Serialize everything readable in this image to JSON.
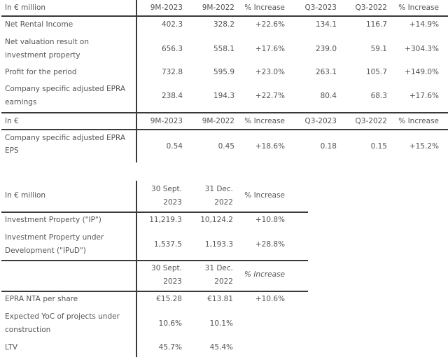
{
  "table1": {
    "header": [
      "In € million",
      "9M-2023",
      "9M-2022",
      "% Increase",
      "Q3-2023",
      "Q3-2022",
      "% Increase"
    ],
    "rows": [
      {
        "label": [
          "Net Rental Income"
        ],
        "values": [
          "402.3",
          "328.2",
          "+22.6%",
          "134.1",
          "116.7",
          "+14.9%"
        ]
      },
      {
        "label": [
          "Net valuation result on",
          "investment property"
        ],
        "values": [
          "656.3",
          "558.1",
          "+17.6%",
          "239.0",
          "59.1",
          "+304.3%"
        ]
      },
      {
        "label": [
          "Profit for the period"
        ],
        "values": [
          "732.8",
          "595.9",
          "+23.0%",
          "263.1",
          "105.7",
          "+149.0%"
        ]
      },
      {
        "label": [
          "Company specific adjusted EPRA",
          "earnings"
        ],
        "values": [
          "238.4",
          "194.3",
          "+22.7%",
          "80.4",
          "68.3",
          "+17.6%"
        ]
      }
    ],
    "header2": [
      "In €",
      "9M-2023",
      "9M-2022",
      "% Increase",
      "Q3-2023",
      "Q3-2022",
      "% Increase"
    ],
    "rows2": [
      {
        "label": [
          "Company specific adjusted EPRA",
          "EPS"
        ],
        "values": [
          "0.54",
          "0.45",
          "+18.6%",
          "0.18",
          "0.15",
          "+15.2%"
        ]
      }
    ]
  },
  "table2": {
    "header": {
      "label": "In € million",
      "col1": [
        "30 Sept.",
        "2023"
      ],
      "col2": [
        "31 Dec.",
        "2022"
      ],
      "col3": "% Increase"
    },
    "rows": [
      {
        "label": [
          "Investment Property (\"IP\")"
        ],
        "values": [
          "11,219.3",
          "10,124.2",
          "+10.8%"
        ]
      },
      {
        "label": [
          "Investment Property under",
          "Development (\"IPuD\")"
        ],
        "values": [
          "1,537.5",
          "1,193.3",
          "+28.8%"
        ]
      }
    ],
    "header2": {
      "label": "",
      "col1": [
        "30 Sept.",
        "2023"
      ],
      "col2": [
        "31 Dec.",
        "2022"
      ],
      "col3": "% Increase"
    },
    "rows2": [
      {
        "label": [
          "EPRA NTA per share"
        ],
        "values": [
          "€15.28",
          "€13.81",
          "+10.6%"
        ]
      },
      {
        "label": [
          "Expected YoC of projects under",
          "construction"
        ],
        "values": [
          "10.6%",
          "10.1%",
          ""
        ]
      },
      {
        "label": [
          "LTV"
        ],
        "values": [
          "45.7%",
          "45.4%",
          ""
        ]
      }
    ]
  }
}
